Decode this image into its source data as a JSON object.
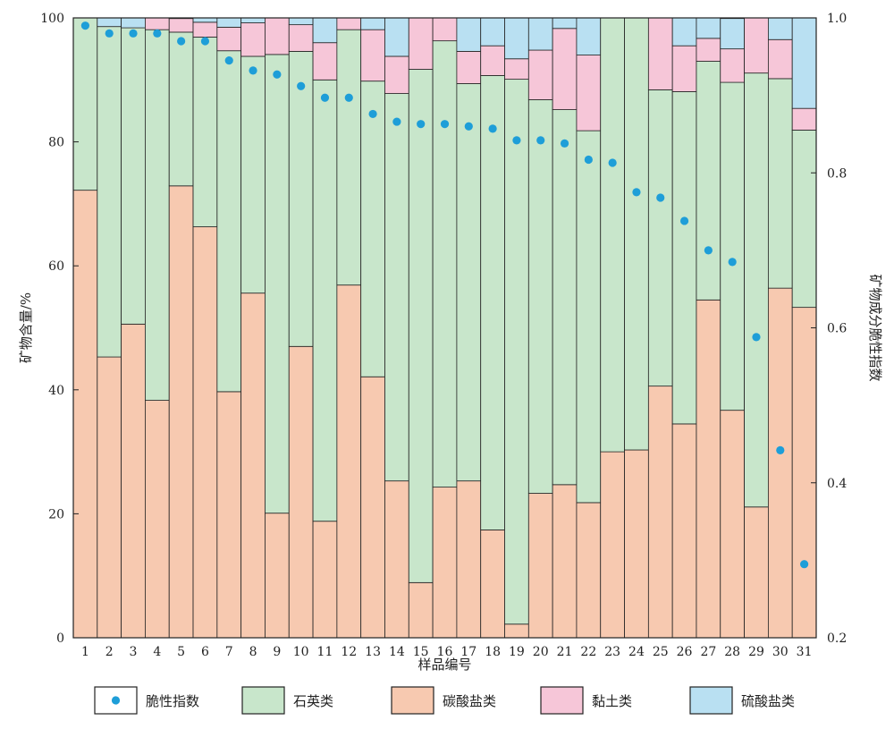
{
  "chart_data": {
    "type": "bar",
    "stacked": true,
    "xlabel": "样品编号",
    "ylabel": "矿物含量/%",
    "y2label": "矿物成分脆性指数",
    "ylim": [
      0,
      100
    ],
    "y2lim": [
      0.2,
      1.0
    ],
    "yticks": [
      "0",
      "20",
      "40",
      "60",
      "80",
      "100"
    ],
    "y2ticks": [
      "0.2",
      "0.4",
      "0.6",
      "0.8",
      "1.0"
    ],
    "categories": [
      "1",
      "2",
      "3",
      "4",
      "5",
      "6",
      "7",
      "8",
      "9",
      "10",
      "11",
      "12",
      "13",
      "14",
      "15",
      "16",
      "17",
      "18",
      "19",
      "20",
      "21",
      "22",
      "23",
      "24",
      "25",
      "26",
      "27",
      "28",
      "29",
      "30",
      "31"
    ],
    "series": [
      {
        "name": "碳酸盐类",
        "color": "#f7c9b0",
        "values": [
          72.2,
          45.3,
          50.6,
          38.3,
          72.9,
          66.3,
          39.7,
          55.6,
          20.1,
          47.0,
          18.8,
          56.9,
          42.1,
          25.3,
          8.9,
          24.3,
          25.3,
          17.4,
          2.2,
          23.3,
          24.7,
          21.8,
          30.0,
          30.3,
          40.6,
          34.5,
          54.5,
          36.7,
          21.1,
          56.4,
          53.3
        ]
      },
      {
        "name": "石英类",
        "color": "#c8e6cb",
        "values": [
          27.8,
          53.3,
          47.8,
          59.8,
          24.8,
          30.6,
          55.0,
          38.2,
          74.0,
          47.6,
          71.2,
          41.2,
          47.7,
          62.5,
          82.8,
          72.0,
          64.1,
          73.3,
          87.9,
          63.5,
          60.5,
          60.0,
          70.0,
          69.7,
          47.8,
          53.6,
          38.5,
          52.9,
          70.0,
          33.8,
          28.6
        ]
      },
      {
        "name": "黏土类",
        "color": "#f6c6d8",
        "values": [
          0,
          0,
          0,
          1.9,
          2.2,
          2.4,
          3.8,
          5.4,
          5.9,
          4.3,
          6.0,
          1.9,
          8.3,
          6.0,
          8.3,
          3.7,
          5.2,
          4.8,
          3.3,
          8.0,
          13.1,
          12.2,
          0,
          0,
          11.6,
          7.4,
          3.7,
          5.4,
          8.9,
          6.3,
          3.5
        ]
      },
      {
        "name": "硫酸盐类",
        "color": "#b9e0f2",
        "values": [
          0,
          1.4,
          1.6,
          0,
          0.1,
          0.7,
          1.5,
          0.8,
          0,
          1.1,
          4.0,
          0,
          1.9,
          6.2,
          0,
          0,
          5.4,
          4.5,
          6.6,
          5.2,
          1.7,
          6.0,
          0,
          0,
          0,
          4.5,
          3.3,
          4.9,
          0,
          3.5,
          14.6
        ]
      }
    ],
    "brittleness_index": {
      "name": "脆性指数",
      "color": "#1e9ed8",
      "values": [
        0.99,
        0.98,
        0.98,
        0.98,
        0.97,
        0.97,
        0.945,
        0.932,
        0.927,
        0.912,
        0.897,
        0.897,
        0.876,
        0.866,
        0.863,
        0.863,
        0.86,
        0.857,
        0.842,
        0.842,
        0.838,
        0.817,
        0.813,
        0.775,
        0.768,
        0.738,
        0.7,
        0.685,
        0.588,
        0.442,
        0.295
      ]
    },
    "legend": {
      "placement": "bottom",
      "items": [
        "脆性指数",
        "石英类",
        "碳酸盐类",
        "黏土类",
        "硫酸盐类"
      ]
    },
    "grid": false
  }
}
